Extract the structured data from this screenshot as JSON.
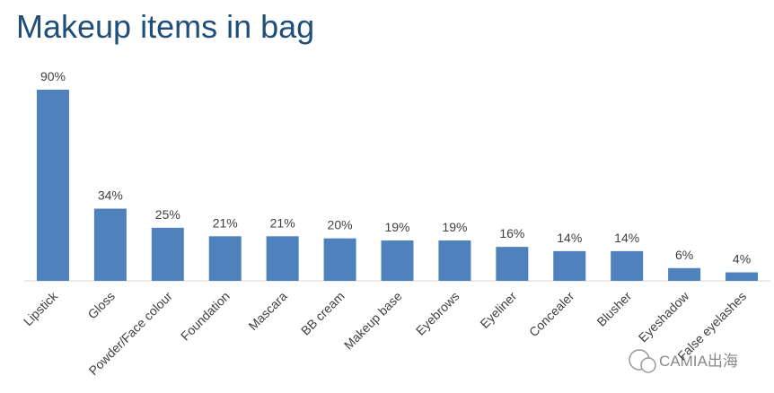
{
  "chart_data": {
    "type": "bar",
    "title": "Makeup items in bag",
    "categories": [
      "Lipstick",
      "Gloss",
      "Powder/Face colour",
      "Foundation",
      "Mascara",
      "BB cream",
      "Makeup base",
      "Eyebrows",
      "Eyeliner",
      "Concealer",
      "Blusher",
      "Eyeshadow",
      "False eyelashes"
    ],
    "values": [
      90,
      34,
      25,
      21,
      21,
      20,
      19,
      19,
      16,
      14,
      14,
      6,
      4
    ],
    "value_labels": [
      "90%",
      "34%",
      "25%",
      "21%",
      "21%",
      "20%",
      "19%",
      "19%",
      "16%",
      "14%",
      "14%",
      "6%",
      "4%"
    ],
    "color": "#4f81bd",
    "watermark": "CAMIA出海"
  }
}
